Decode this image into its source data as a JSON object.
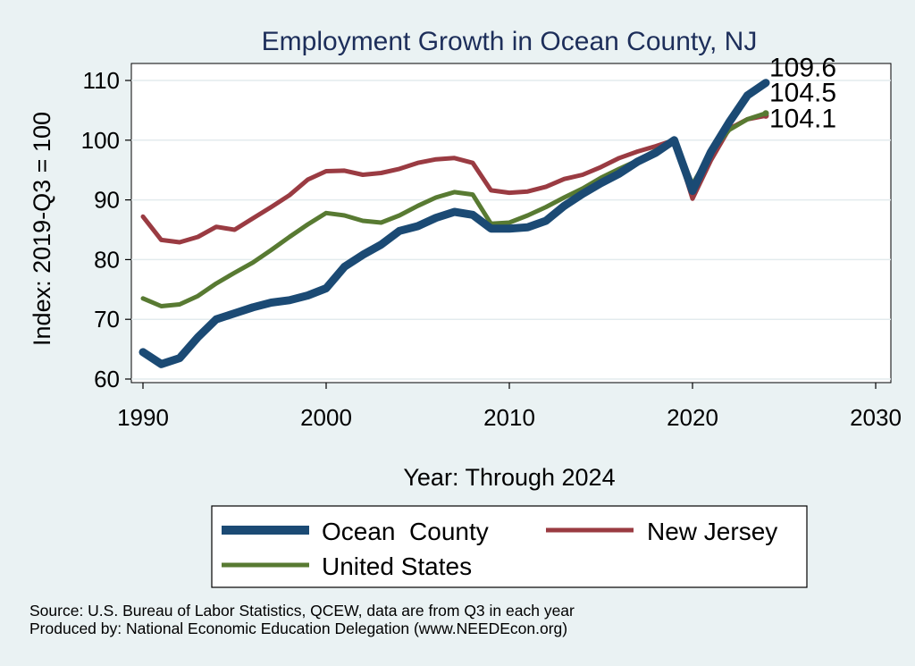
{
  "chart_data": {
    "type": "line",
    "title": "Employment Growth in Ocean County, NJ",
    "xlabel": "Year: Through 2024",
    "ylabel": "Index: 2019-Q3 = 100",
    "xlim": [
      1990,
      2030
    ],
    "ylim": [
      60,
      110
    ],
    "xticks": [
      1990,
      2000,
      2010,
      2020,
      2030
    ],
    "yticks": [
      60,
      70,
      80,
      90,
      100,
      110
    ],
    "x": [
      1990,
      1991,
      1992,
      1993,
      1994,
      1995,
      1996,
      1997,
      1998,
      1999,
      2000,
      2001,
      2002,
      2003,
      2004,
      2005,
      2006,
      2007,
      2008,
      2009,
      2010,
      2011,
      2012,
      2013,
      2014,
      2015,
      2016,
      2017,
      2018,
      2019,
      2020,
      2021,
      2022,
      2023,
      2024
    ],
    "series": [
      {
        "name": "Ocean  County",
        "color": "#1b4a74",
        "end_label": "109.6",
        "values": [
          64.5,
          62.5,
          63.5,
          67.0,
          70.0,
          71.0,
          72.0,
          72.8,
          73.2,
          74.0,
          75.2,
          78.8,
          80.8,
          82.5,
          84.8,
          85.6,
          87.0,
          88.0,
          87.5,
          85.2,
          85.2,
          85.4,
          86.5,
          89.0,
          91.0,
          92.8,
          94.4,
          96.4,
          97.9,
          100.0,
          91.5,
          98.0,
          103.0,
          107.5,
          109.6
        ]
      },
      {
        "name": "New Jersey",
        "color": "#9a3b42",
        "end_label": "104.1",
        "values": [
          87.2,
          83.3,
          82.9,
          83.8,
          85.5,
          85.0,
          86.9,
          88.8,
          90.8,
          93.4,
          94.8,
          94.9,
          94.2,
          94.5,
          95.2,
          96.2,
          96.8,
          97.0,
          96.2,
          91.6,
          91.2,
          91.4,
          92.2,
          93.5,
          94.2,
          95.5,
          97.0,
          98.1,
          99.0,
          100.0,
          90.2,
          96.6,
          101.9,
          103.5,
          104.1
        ]
      },
      {
        "name": "United States",
        "color": "#587a32",
        "end_label": "104.5",
        "values": [
          73.5,
          72.2,
          72.5,
          73.9,
          76.0,
          77.8,
          79.5,
          81.6,
          83.8,
          85.9,
          87.8,
          87.4,
          86.5,
          86.2,
          87.4,
          89.0,
          90.4,
          91.3,
          90.9,
          86.0,
          86.2,
          87.4,
          88.8,
          90.4,
          91.9,
          93.7,
          95.2,
          96.6,
          98.3,
          100.0,
          92.6,
          98.0,
          101.7,
          103.5,
          104.5
        ]
      }
    ],
    "legend": {
      "position": "bottom"
    }
  },
  "source_lines": [
    "Source: U.S. Bureau of Labor Statistics, QCEW, data are from Q3 in each year",
    "Produced by: National Economic Education Delegation (www.NEEDEcon.org)"
  ]
}
